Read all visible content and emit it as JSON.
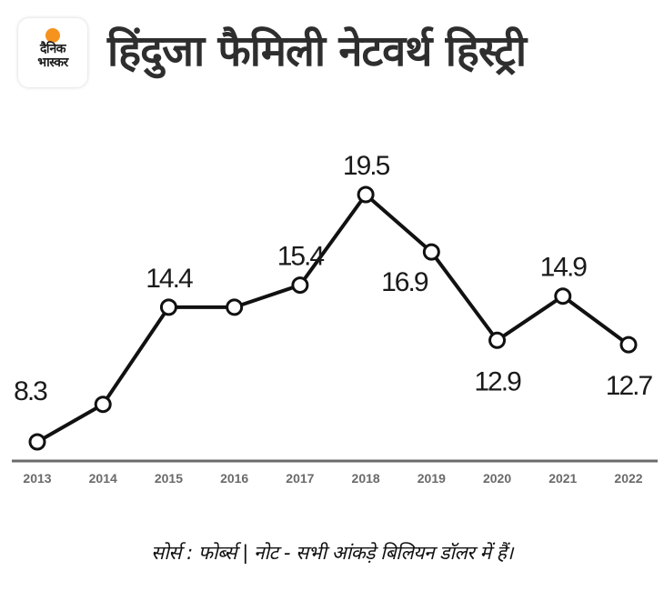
{
  "header": {
    "logo": {
      "line1": "दैनिक",
      "line2": "भास्कर",
      "sun_color": "#f6921e"
    },
    "title": "हिंदुजा फैमिली नेटवर्थ हिस्ट्री"
  },
  "footer": {
    "note": "सोर्स : फोर्ब्स | नोट - सभी आंकड़े  बिलियन डॉलर में हैं।"
  },
  "chart_data": {
    "type": "line",
    "title": "हिंदुजा फैमिली नेटवर्थ हिस्ट्री",
    "xlabel": "",
    "ylabel": "",
    "unit": "billion USD",
    "categories": [
      "2013",
      "2014",
      "2015",
      "2016",
      "2017",
      "2018",
      "2019",
      "2020",
      "2021",
      "2022"
    ],
    "series": [
      {
        "name": "Net worth",
        "values": [
          8.3,
          10.0,
          14.4,
          14.4,
          15.4,
          19.5,
          16.9,
          12.9,
          14.9,
          12.7
        ],
        "labels": [
          "8.3",
          "",
          "14.4",
          "",
          "15.4",
          "19.5",
          "16.9",
          "12.9",
          "14.9",
          "12.7"
        ],
        "label_position": [
          "above",
          "none",
          "above",
          "none",
          "above",
          "above",
          "below-left",
          "below",
          "above",
          "below"
        ],
        "color": "#111111",
        "marker": "hollow-circle"
      }
    ],
    "ylim": [
      8.3,
      19.5
    ],
    "grid": false,
    "legend": "none",
    "colors": {
      "line": "#111111",
      "axis": "#6a6a6a",
      "tick_text": "#6a6a6a",
      "label_text": "#1a1a1a"
    }
  }
}
